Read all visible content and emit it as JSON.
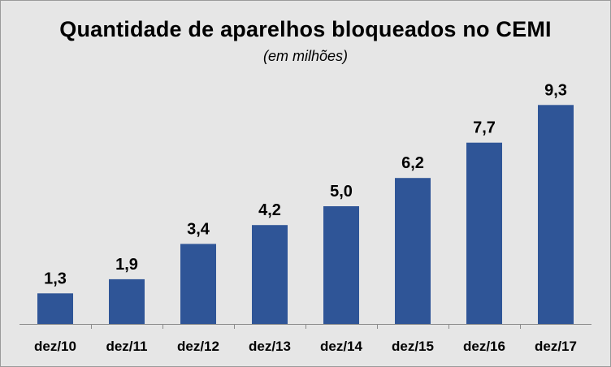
{
  "chart_data": {
    "type": "bar",
    "title": "Quantidade de aparelhos bloqueados no CEMI",
    "subtitle": "(em milhões)",
    "categories": [
      "dez/10",
      "dez/11",
      "dez/12",
      "dez/13",
      "dez/14",
      "dez/15",
      "dez/16",
      "dez/17"
    ],
    "values": [
      1.3,
      1.9,
      3.4,
      4.2,
      5.0,
      6.2,
      7.7,
      9.3
    ],
    "value_labels": [
      "1,3",
      "1,9",
      "3,4",
      "4,2",
      "5,0",
      "6,2",
      "7,7",
      "9,3"
    ],
    "xlabel": "",
    "ylabel": "",
    "ylim": [
      0,
      10
    ],
    "grid": false,
    "legend": "none",
    "bar_color": "#2f5597",
    "background_color": "#e6e6e6"
  }
}
